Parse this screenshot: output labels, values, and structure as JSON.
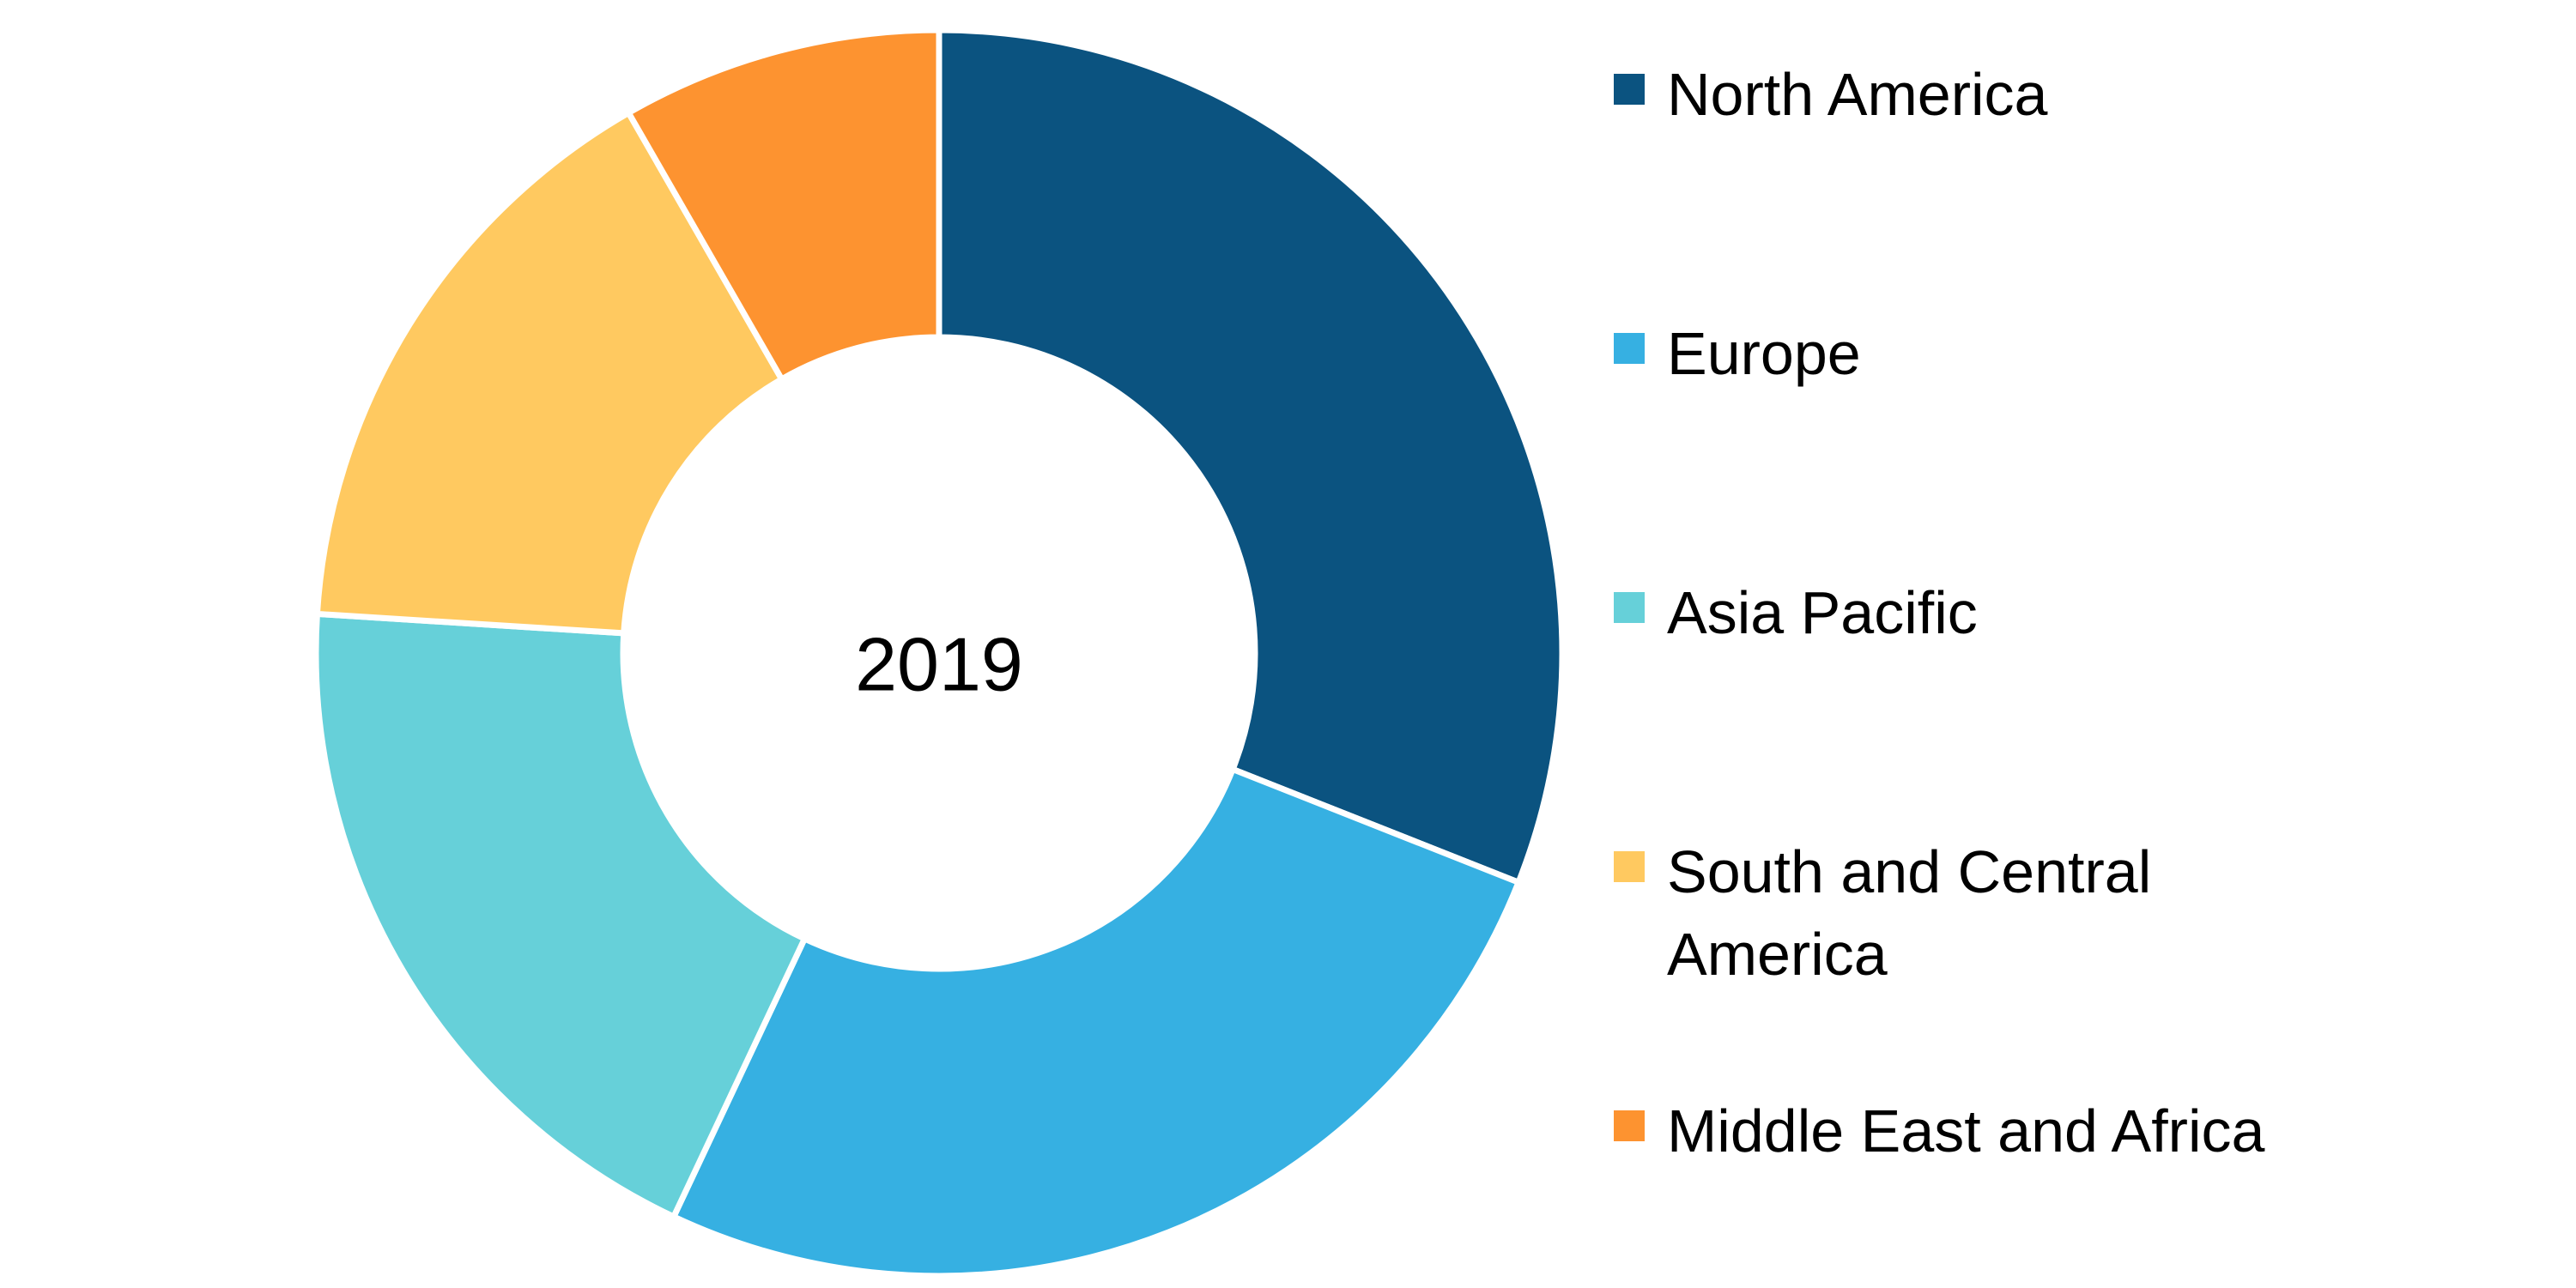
{
  "chart_data": {
    "type": "pie",
    "center_label": "2019",
    "categories": [
      "North America",
      "Europe",
      "Asia Pacific",
      "South and Central America",
      "Middle East and Africa"
    ],
    "values": [
      31,
      26,
      19,
      15.7,
      8.3
    ],
    "colors": [
      "#0b5380",
      "#36b0e2",
      "#66d0d9",
      "#ffc960",
      "#fd9330"
    ],
    "legend": "right"
  }
}
